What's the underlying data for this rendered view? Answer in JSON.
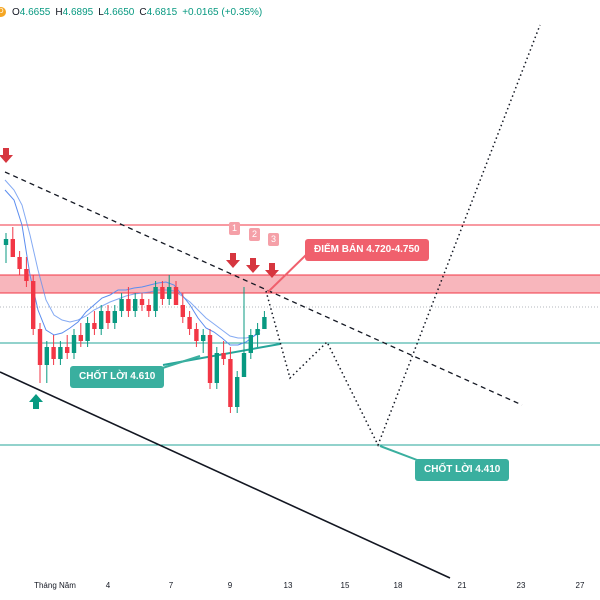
{
  "ohlc": {
    "badge": "D",
    "o_label": "O",
    "o": "4.6655",
    "h_label": "H",
    "h": "4.6895",
    "l_label": "L",
    "l": "4.6650",
    "c_label": "C",
    "c": "4.6815",
    "change": "+0.0165 (+0.35%)"
  },
  "annotations": {
    "sell_zone": "ĐIỂM BÁN 4.720-4.750",
    "take_profit_1": "CHỐT LỜI 4.610",
    "take_profit_2": "CHỐT LỜI 4.410",
    "steps": [
      "1",
      "2",
      "3"
    ]
  },
  "colors": {
    "up": "#089981",
    "down": "#f23645",
    "zone": "#f7a9b0",
    "sell_tag": "#f0606d",
    "tp_tag": "#3aaf9f",
    "ma": "#5b8def"
  },
  "chart_data": {
    "type": "candlestick",
    "x_ticks": [
      "Tháng Năm",
      "4",
      "7",
      "9",
      "13",
      "15",
      "18",
      "21",
      "23",
      "27"
    ],
    "levels": {
      "sell_zone": [
        4.72,
        4.75
      ],
      "resistance": 4.79,
      "take_profit_1": 4.61,
      "take_profit_2": 4.41
    },
    "candles": [
      {
        "o": 4.8,
        "h": 4.82,
        "l": 4.77,
        "c": 4.81
      },
      {
        "o": 4.81,
        "h": 4.83,
        "l": 4.78,
        "c": 4.78
      },
      {
        "o": 4.78,
        "h": 4.79,
        "l": 4.75,
        "c": 4.76
      },
      {
        "o": 4.76,
        "h": 4.78,
        "l": 4.73,
        "c": 4.74
      },
      {
        "o": 4.74,
        "h": 4.75,
        "l": 4.65,
        "c": 4.66
      },
      {
        "o": 4.66,
        "h": 4.67,
        "l": 4.57,
        "c": 4.6
      },
      {
        "o": 4.6,
        "h": 4.64,
        "l": 4.57,
        "c": 4.63
      },
      {
        "o": 4.63,
        "h": 4.65,
        "l": 4.6,
        "c": 4.61
      },
      {
        "o": 4.61,
        "h": 4.64,
        "l": 4.6,
        "c": 4.63
      },
      {
        "o": 4.63,
        "h": 4.65,
        "l": 4.61,
        "c": 4.62
      },
      {
        "o": 4.62,
        "h": 4.66,
        "l": 4.61,
        "c": 4.65
      },
      {
        "o": 4.65,
        "h": 4.67,
        "l": 4.63,
        "c": 4.64
      },
      {
        "o": 4.64,
        "h": 4.68,
        "l": 4.63,
        "c": 4.67
      },
      {
        "o": 4.67,
        "h": 4.69,
        "l": 4.65,
        "c": 4.66
      },
      {
        "o": 4.66,
        "h": 4.7,
        "l": 4.65,
        "c": 4.69
      },
      {
        "o": 4.69,
        "h": 4.7,
        "l": 4.66,
        "c": 4.67
      },
      {
        "o": 4.67,
        "h": 4.7,
        "l": 4.66,
        "c": 4.69
      },
      {
        "o": 4.69,
        "h": 4.72,
        "l": 4.68,
        "c": 4.71
      },
      {
        "o": 4.71,
        "h": 4.73,
        "l": 4.68,
        "c": 4.69
      },
      {
        "o": 4.69,
        "h": 4.72,
        "l": 4.68,
        "c": 4.71
      },
      {
        "o": 4.71,
        "h": 4.72,
        "l": 4.69,
        "c": 4.7
      },
      {
        "o": 4.7,
        "h": 4.71,
        "l": 4.68,
        "c": 4.69
      },
      {
        "o": 4.69,
        "h": 4.74,
        "l": 4.68,
        "c": 4.73
      },
      {
        "o": 4.73,
        "h": 4.74,
        "l": 4.7,
        "c": 4.71
      },
      {
        "o": 4.71,
        "h": 4.75,
        "l": 4.7,
        "c": 4.73
      },
      {
        "o": 4.73,
        "h": 4.74,
        "l": 4.7,
        "c": 4.7
      },
      {
        "o": 4.7,
        "h": 4.72,
        "l": 4.67,
        "c": 4.68
      },
      {
        "o": 4.68,
        "h": 4.69,
        "l": 4.65,
        "c": 4.66
      },
      {
        "o": 4.66,
        "h": 4.67,
        "l": 4.63,
        "c": 4.64
      },
      {
        "o": 4.64,
        "h": 4.66,
        "l": 4.62,
        "c": 4.65
      },
      {
        "o": 4.65,
        "h": 4.66,
        "l": 4.56,
        "c": 4.57
      },
      {
        "o": 4.57,
        "h": 4.63,
        "l": 4.56,
        "c": 4.62
      },
      {
        "o": 4.62,
        "h": 4.64,
        "l": 4.6,
        "c": 4.61
      },
      {
        "o": 4.61,
        "h": 4.63,
        "l": 4.52,
        "c": 4.53
      },
      {
        "o": 4.53,
        "h": 4.59,
        "l": 4.52,
        "c": 4.58
      },
      {
        "o": 4.58,
        "h": 4.73,
        "l": 4.58,
        "c": 4.62
      },
      {
        "o": 4.62,
        "h": 4.66,
        "l": 4.61,
        "c": 4.65
      },
      {
        "o": 4.65,
        "h": 4.67,
        "l": 4.63,
        "c": 4.66
      },
      {
        "o": 4.66,
        "h": 4.69,
        "l": 4.66,
        "c": 4.68
      }
    ]
  }
}
